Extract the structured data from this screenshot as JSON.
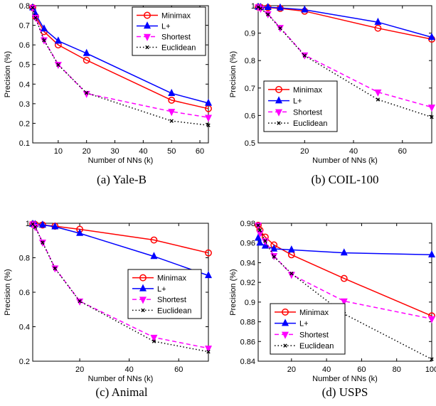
{
  "series_styles": {
    "Minimax": {
      "color": "#ff0000",
      "marker": "circle",
      "dash": ""
    },
    "L+": {
      "color": "#0000ff",
      "marker": "triangle",
      "dash": ""
    },
    "Shortest": {
      "color": "#ff00ff",
      "marker": "tri-down",
      "dash": "6,4"
    },
    "Euclidean": {
      "color": "#000000",
      "marker": "x",
      "dash": "1.5,3"
    }
  },
  "chart_data": [
    {
      "type": "line",
      "caption": "(a)  Yale-B",
      "xlabel": "Number of NNs (k)",
      "ylabel": "Precision (%)",
      "xlim": [
        1,
        63
      ],
      "ylim": [
        0.1,
        0.8
      ],
      "xticks": [
        10,
        20,
        30,
        40,
        50,
        60
      ],
      "xtick_labels": [
        "10",
        "20",
        "30",
        "40",
        "50",
        "60"
      ],
      "yticks": [
        0.1,
        0.2,
        0.3,
        0.4,
        0.5,
        0.6,
        0.7,
        0.8
      ],
      "ytick_labels": [
        "0.1",
        "0.2",
        "0.3",
        "0.4",
        "0.5",
        "0.6",
        "0.7",
        "0.8"
      ],
      "legend_position": "top-right",
      "series": [
        {
          "name": "Minimax",
          "x": [
            1,
            2,
            5,
            10,
            20,
            50,
            63
          ],
          "y": [
            0.79,
            0.745,
            0.668,
            0.6,
            0.522,
            0.318,
            0.275
          ]
        },
        {
          "name": "L+",
          "x": [
            1,
            2,
            5,
            10,
            20,
            50,
            63
          ],
          "y": [
            0.79,
            0.757,
            0.682,
            0.62,
            0.557,
            0.353,
            0.303
          ]
        },
        {
          "name": "Shortest",
          "x": [
            1,
            2,
            5,
            10,
            20,
            50,
            63
          ],
          "y": [
            0.79,
            0.74,
            0.625,
            0.5,
            0.352,
            0.26,
            0.23
          ]
        },
        {
          "name": "Euclidean",
          "x": [
            1,
            2,
            5,
            10,
            20,
            50,
            63
          ],
          "y": [
            0.79,
            0.738,
            0.623,
            0.498,
            0.355,
            0.212,
            0.19
          ]
        }
      ]
    },
    {
      "type": "line",
      "caption": "(b)  COIL-100",
      "xlabel": "Number of NNs (k)",
      "ylabel": "Precision (%)",
      "xlim": [
        1,
        72
      ],
      "ylim": [
        0.5,
        1.0
      ],
      "xticks": [
        20,
        40,
        60
      ],
      "xtick_labels": [
        "20",
        "40",
        "60"
      ],
      "yticks": [
        0.5,
        0.6,
        0.7,
        0.8,
        0.9,
        1.0
      ],
      "ytick_labels": [
        "0.5",
        "0.6",
        "0.7",
        "0.8",
        "0.9",
        "1"
      ],
      "legend_position": "lower-right",
      "series": [
        {
          "name": "Minimax",
          "x": [
            1,
            2,
            5,
            10,
            20,
            50,
            72
          ],
          "y": [
            0.995,
            0.994,
            0.993,
            0.99,
            0.98,
            0.918,
            0.878
          ]
        },
        {
          "name": "L+",
          "x": [
            1,
            2,
            5,
            10,
            20,
            50,
            72
          ],
          "y": [
            0.995,
            0.994,
            0.994,
            0.992,
            0.985,
            0.94,
            0.885
          ]
        },
        {
          "name": "Shortest",
          "x": [
            1,
            2,
            5,
            10,
            20,
            50,
            72
          ],
          "y": [
            0.995,
            0.99,
            0.97,
            0.92,
            0.82,
            0.685,
            0.63
          ]
        },
        {
          "name": "Euclidean",
          "x": [
            1,
            2,
            5,
            10,
            20,
            50,
            72
          ],
          "y": [
            0.995,
            0.99,
            0.968,
            0.918,
            0.818,
            0.658,
            0.594
          ]
        }
      ]
    },
    {
      "type": "line",
      "caption": "(c)  Animal",
      "xlabel": "Number of NNs (k)",
      "ylabel": "Precision (%)",
      "xlim": [
        1,
        72
      ],
      "ylim": [
        0.2,
        1.0
      ],
      "xticks": [
        20,
        40,
        60
      ],
      "xtick_labels": [
        "20",
        "40",
        "60"
      ],
      "yticks": [
        0.2,
        0.4,
        0.6,
        0.8,
        1.0
      ],
      "ytick_labels": [
        "0.2",
        "0.4",
        "0.6",
        "0.8",
        "1"
      ],
      "legend_position": "center-right",
      "series": [
        {
          "name": "Minimax",
          "x": [
            1,
            2,
            5,
            10,
            20,
            50,
            72
          ],
          "y": [
            0.995,
            0.993,
            0.99,
            0.983,
            0.965,
            0.903,
            0.828
          ]
        },
        {
          "name": "L+",
          "x": [
            1,
            2,
            5,
            10,
            20,
            50,
            72
          ],
          "y": [
            0.995,
            0.993,
            0.99,
            0.98,
            0.942,
            0.808,
            0.697
          ]
        },
        {
          "name": "Shortest",
          "x": [
            1,
            2,
            5,
            10,
            20,
            50,
            72
          ],
          "y": [
            0.995,
            0.98,
            0.89,
            0.74,
            0.548,
            0.338,
            0.275
          ]
        },
        {
          "name": "Euclidean",
          "x": [
            1,
            2,
            5,
            10,
            20,
            50,
            72
          ],
          "y": [
            0.995,
            0.978,
            0.888,
            0.738,
            0.548,
            0.315,
            0.255
          ]
        }
      ]
    },
    {
      "type": "line",
      "caption": "(d)  USPS",
      "xlabel": "Number of NNs (k)",
      "ylabel": "Precision (%)",
      "xlim": [
        1,
        100
      ],
      "ylim": [
        0.84,
        0.98
      ],
      "xticks": [
        20,
        40,
        60,
        80,
        100
      ],
      "xtick_labels": [
        "20",
        "40",
        "60",
        "80",
        "100"
      ],
      "yticks": [
        0.84,
        0.86,
        0.88,
        0.9,
        0.92,
        0.94,
        0.96,
        0.98
      ],
      "ytick_labels": [
        "0.84",
        "0.86",
        "0.88",
        "0.9",
        "0.92",
        "0.94",
        "0.96",
        "0.98"
      ],
      "legend_position": "lower-right",
      "series": [
        {
          "name": "Minimax",
          "x": [
            1,
            2,
            5,
            10,
            20,
            50,
            100
          ],
          "y": [
            0.978,
            0.973,
            0.966,
            0.958,
            0.948,
            0.924,
            0.886
          ]
        },
        {
          "name": "L+",
          "x": [
            1,
            2,
            5,
            10,
            20,
            50,
            100
          ],
          "y": [
            0.965,
            0.96,
            0.957,
            0.954,
            0.953,
            0.95,
            0.948
          ]
        },
        {
          "name": "Shortest",
          "x": [
            1,
            2,
            5,
            10,
            20,
            50,
            100
          ],
          "y": [
            0.978,
            0.97,
            0.962,
            0.947,
            0.928,
            0.901,
            0.883
          ]
        },
        {
          "name": "Euclidean",
          "x": [
            1,
            2,
            5,
            10,
            20,
            50,
            100
          ],
          "y": [
            0.978,
            0.973,
            0.962,
            0.946,
            0.929,
            0.888,
            0.842
          ]
        }
      ]
    }
  ]
}
